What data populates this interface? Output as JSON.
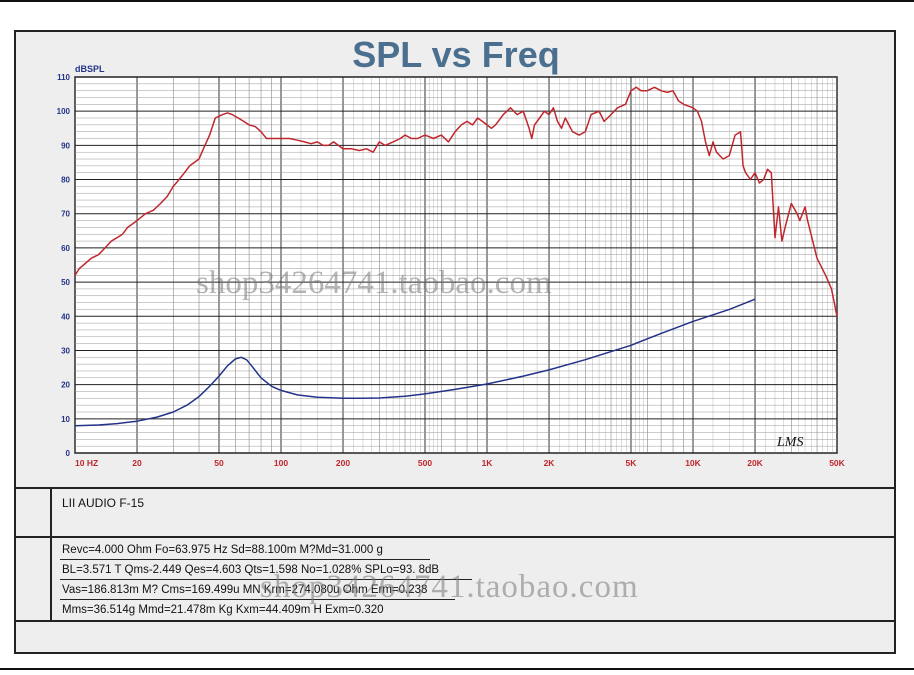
{
  "chart_data": {
    "type": "line",
    "title": "SPL vs Freq",
    "ylabel": "dBSPL",
    "x_scale": "log",
    "xlim": [
      10,
      50000
    ],
    "ylim": [
      0,
      110
    ],
    "grid": true,
    "x_ticks": [
      {
        "value": 10,
        "label": "10 HZ"
      },
      {
        "value": 20,
        "label": "20"
      },
      {
        "value": 50,
        "label": "50"
      },
      {
        "value": 100,
        "label": "100"
      },
      {
        "value": 200,
        "label": "200"
      },
      {
        "value": 500,
        "label": "500"
      },
      {
        "value": 1000,
        "label": "1K"
      },
      {
        "value": 2000,
        "label": "2K"
      },
      {
        "value": 5000,
        "label": "5K"
      },
      {
        "value": 10000,
        "label": "10K"
      },
      {
        "value": 20000,
        "label": "20K"
      },
      {
        "value": 50000,
        "label": "50K"
      }
    ],
    "y_ticks": [
      0,
      10,
      20,
      30,
      40,
      50,
      60,
      70,
      80,
      90,
      100,
      110
    ],
    "series": [
      {
        "color": "#c0272d",
        "points": [
          [
            10,
            52
          ],
          [
            10.5,
            54
          ],
          [
            11,
            55
          ],
          [
            12,
            57
          ],
          [
            13,
            58
          ],
          [
            14,
            60
          ],
          [
            15,
            62
          ],
          [
            16,
            63
          ],
          [
            17,
            64
          ],
          [
            18,
            66
          ],
          [
            19,
            67
          ],
          [
            20,
            68
          ],
          [
            22,
            70
          ],
          [
            24,
            71
          ],
          [
            26,
            73
          ],
          [
            28,
            75
          ],
          [
            30,
            78
          ],
          [
            32,
            80
          ],
          [
            34,
            82
          ],
          [
            36,
            84
          ],
          [
            40,
            86
          ],
          [
            42,
            89
          ],
          [
            45,
            93
          ],
          [
            48,
            98
          ],
          [
            52,
            99
          ],
          [
            55,
            99.5
          ],
          [
            58,
            99
          ],
          [
            62,
            98
          ],
          [
            66,
            97
          ],
          [
            70,
            96
          ],
          [
            75,
            95.5
          ],
          [
            80,
            94
          ],
          [
            85,
            92
          ],
          [
            90,
            92
          ],
          [
            100,
            92
          ],
          [
            110,
            92
          ],
          [
            120,
            91.5
          ],
          [
            130,
            91
          ],
          [
            140,
            90.5
          ],
          [
            150,
            91
          ],
          [
            160,
            90
          ],
          [
            170,
            90
          ],
          [
            180,
            91
          ],
          [
            190,
            90
          ],
          [
            200,
            89
          ],
          [
            220,
            89
          ],
          [
            240,
            88.5
          ],
          [
            260,
            89
          ],
          [
            280,
            88
          ],
          [
            300,
            91
          ],
          [
            320,
            90
          ],
          [
            350,
            91
          ],
          [
            380,
            92
          ],
          [
            400,
            93
          ],
          [
            430,
            92
          ],
          [
            460,
            92
          ],
          [
            500,
            93
          ],
          [
            550,
            92
          ],
          [
            600,
            93
          ],
          [
            650,
            91
          ],
          [
            700,
            94
          ],
          [
            750,
            96
          ],
          [
            800,
            97
          ],
          [
            850,
            96
          ],
          [
            900,
            98
          ],
          [
            950,
            97
          ],
          [
            1000,
            96
          ],
          [
            1050,
            95
          ],
          [
            1100,
            96
          ],
          [
            1200,
            99
          ],
          [
            1300,
            101
          ],
          [
            1400,
            99
          ],
          [
            1500,
            100
          ],
          [
            1600,
            95
          ],
          [
            1650,
            92
          ],
          [
            1700,
            96
          ],
          [
            1800,
            98
          ],
          [
            1900,
            100
          ],
          [
            2000,
            99
          ],
          [
            2100,
            101
          ],
          [
            2200,
            97
          ],
          [
            2300,
            95
          ],
          [
            2400,
            98
          ],
          [
            2600,
            94
          ],
          [
            2800,
            93
          ],
          [
            3000,
            94
          ],
          [
            3200,
            99
          ],
          [
            3500,
            100
          ],
          [
            3700,
            97
          ],
          [
            4000,
            99
          ],
          [
            4300,
            101
          ],
          [
            4700,
            102
          ],
          [
            5000,
            106
          ],
          [
            5300,
            107
          ],
          [
            5600,
            106
          ],
          [
            6000,
            106
          ],
          [
            6500,
            107
          ],
          [
            7000,
            106
          ],
          [
            7500,
            105.5
          ],
          [
            8000,
            106
          ],
          [
            8500,
            103
          ],
          [
            9000,
            102
          ],
          [
            10000,
            101
          ],
          [
            10500,
            100
          ],
          [
            11000,
            97
          ],
          [
            11500,
            91
          ],
          [
            12000,
            87
          ],
          [
            12500,
            91
          ],
          [
            13000,
            88
          ],
          [
            14000,
            86
          ],
          [
            15000,
            87
          ],
          [
            16000,
            93
          ],
          [
            17000,
            94
          ],
          [
            17500,
            84
          ],
          [
            18000,
            82
          ],
          [
            19000,
            80
          ],
          [
            20000,
            82
          ],
          [
            21000,
            79
          ],
          [
            22000,
            80
          ],
          [
            23000,
            83
          ],
          [
            24000,
            82
          ],
          [
            25000,
            63
          ],
          [
            26000,
            72
          ],
          [
            27000,
            62
          ],
          [
            28000,
            66
          ],
          [
            30000,
            73
          ],
          [
            32000,
            70
          ],
          [
            33000,
            68
          ],
          [
            35000,
            72
          ],
          [
            36000,
            68
          ],
          [
            40000,
            57
          ],
          [
            44000,
            52
          ],
          [
            47000,
            48
          ],
          [
            50000,
            40
          ]
        ]
      },
      {
        "color": "#23338a",
        "points": [
          [
            10,
            8
          ],
          [
            13,
            8.2
          ],
          [
            16,
            8.6
          ],
          [
            20,
            9.3
          ],
          [
            25,
            10.5
          ],
          [
            30,
            12
          ],
          [
            35,
            14
          ],
          [
            40,
            16.5
          ],
          [
            45,
            19.5
          ],
          [
            50,
            22.5
          ],
          [
            55,
            25.5
          ],
          [
            60,
            27.5
          ],
          [
            64,
            28
          ],
          [
            68,
            27.3
          ],
          [
            72,
            25.5
          ],
          [
            80,
            22
          ],
          [
            90,
            19.5
          ],
          [
            100,
            18.3
          ],
          [
            120,
            17
          ],
          [
            150,
            16.3
          ],
          [
            200,
            16
          ],
          [
            250,
            16
          ],
          [
            300,
            16.1
          ],
          [
            400,
            16.6
          ],
          [
            500,
            17.3
          ],
          [
            700,
            18.6
          ],
          [
            1000,
            20.2
          ],
          [
            1500,
            22.5
          ],
          [
            2000,
            24.3
          ],
          [
            3000,
            27.3
          ],
          [
            5000,
            31.5
          ],
          [
            7000,
            35
          ],
          [
            10000,
            38.5
          ],
          [
            15000,
            42
          ],
          [
            20000,
            45
          ]
        ]
      }
    ],
    "watermark": "shop34264741.taobao.com",
    "logo_text": "LMS"
  },
  "info": {
    "model": "LII AUDIO F-15",
    "params": [
      "Revc=4.000 Ohm  Fo=63.975 Hz  Sd=88.100m M?Md=31.000 g",
      "BL=3.571 T Qms-2.449  Qes=4.603   Qts=1.598  No=1.028%  SPLo=93. 8dB",
      "Vas=186.813m M? Cms=169.499u MN Krm=274.080u Ohm Erm=0.238",
      "Mms=36.514g  Mmd=21.478m Kg  Kxm=44.409m H  Exm=0.320"
    ]
  }
}
